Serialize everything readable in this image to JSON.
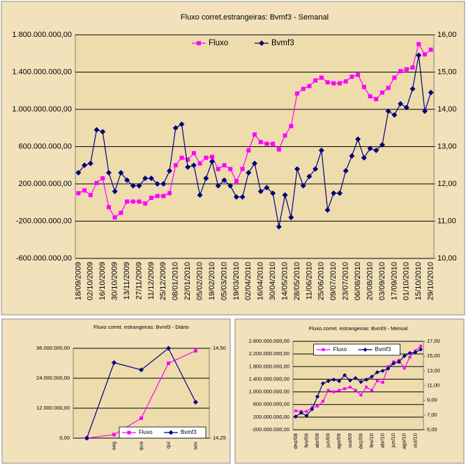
{
  "chart_data": [
    {
      "type": "line",
      "title": "Fluxo corret.estrangeiras: Bvmf3 - Semanal",
      "categories": [
        "18/09/2009",
        null,
        "02/10/2009",
        null,
        "16/10/2009",
        null,
        "30/10/2009",
        null,
        "13/11/2009",
        null,
        "27/11/2009",
        null,
        "11/12/2009",
        null,
        "25/12/2009",
        null,
        "08/01/2010",
        null,
        "22/01/2010",
        null,
        "05/02/2010",
        null,
        "19/02/2010",
        null,
        "05/03/2010",
        null,
        "19/03/2010",
        null,
        "02/04/2010",
        null,
        "16/04/2010",
        null,
        "30/04/2010",
        null,
        "14/05/2010",
        null,
        "28/05/2010",
        null,
        "11/06/2010",
        null,
        "25/06/2010",
        null,
        "09/07/2010",
        null,
        "23/07/2010",
        null,
        "06/08/2010",
        null,
        "20/08/2010",
        null,
        "03/09/2010",
        null,
        "17/09/2010",
        null,
        "01/10/2010",
        null,
        "15/10/2010",
        null,
        "29/10/2010"
      ],
      "series": [
        {
          "name": "Fluxo",
          "color": "#ff00ff",
          "marker": "square",
          "values": [
            100000000,
            130000000,
            80000000,
            210000000,
            260000000,
            -50000000,
            -160000000,
            -110000000,
            10000000,
            10000000,
            10000000,
            -10000000,
            50000000,
            70000000,
            70000000,
            100000000,
            400000000,
            480000000,
            460000000,
            530000000,
            420000000,
            480000000,
            490000000,
            360000000,
            400000000,
            360000000,
            230000000,
            360000000,
            560000000,
            730000000,
            650000000,
            630000000,
            630000000,
            570000000,
            720000000,
            820000000,
            1170000000,
            1220000000,
            1250000000,
            1310000000,
            1340000000,
            1290000000,
            1280000000,
            1280000000,
            1300000000,
            1350000000,
            1370000000,
            1240000000,
            1140000000,
            1110000000,
            1180000000,
            1230000000,
            1340000000,
            1410000000,
            1430000000,
            1450000000,
            1700000000,
            1590000000,
            1640000000
          ]
        },
        {
          "name": "Bvmf3",
          "color": "#000080",
          "marker": "diamond",
          "axis": "y2",
          "values": [
            12.3,
            12.5,
            12.55,
            13.45,
            13.4,
            12.3,
            11.8,
            12.3,
            12.1,
            11.95,
            11.95,
            12.15,
            12.15,
            12.0,
            12.0,
            12.35,
            13.5,
            13.6,
            12.45,
            12.5,
            11.7,
            12.15,
            12.6,
            11.95,
            12.1,
            11.95,
            11.65,
            11.65,
            12.3,
            12.55,
            11.8,
            11.9,
            11.75,
            10.85,
            11.7,
            11.1,
            12.4,
            11.95,
            12.2,
            12.4,
            12.9,
            11.3,
            11.75,
            11.75,
            12.35,
            12.75,
            13.2,
            12.7,
            12.95,
            12.9,
            13.05,
            13.95,
            13.85,
            14.15,
            14.05,
            14.55,
            15.45,
            13.95,
            14.45
          ]
        }
      ],
      "ylim": [
        -600000000,
        1800000000
      ],
      "yticks": [
        {
          "value": -600000000,
          "label": "-600.000.000,00"
        },
        {
          "value": -200000000,
          "label": "-200.000.000,00"
        },
        {
          "value": 200000000,
          "label": "200.000.000,00"
        },
        {
          "value": 600000000,
          "label": "600.000.000,00"
        },
        {
          "value": 1000000000,
          "label": "1.000.000.000,00"
        },
        {
          "value": 1400000000,
          "label": "1.400.000.000,00"
        },
        {
          "value": 1800000000,
          "label": "1.800.000.000,00"
        }
      ],
      "y2lim": [
        10,
        16
      ],
      "y2ticks": [
        {
          "value": 10,
          "label": "10,00"
        },
        {
          "value": 11,
          "label": "11,00"
        },
        {
          "value": 12,
          "label": "12,00"
        },
        {
          "value": 13,
          "label": "13,00"
        },
        {
          "value": 14,
          "label": "14,00"
        },
        {
          "value": 15,
          "label": "15,00"
        },
        {
          "value": 16,
          "label": "16,00"
        }
      ],
      "grid": true,
      "legend": "top"
    },
    {
      "type": "line",
      "title": "Fluxo corret. estrangeiras: Bvmf3 - Diário",
      "categories": [
        null,
        "seg",
        "qua",
        "qui",
        "sex"
      ],
      "series": [
        {
          "name": "Fluxo",
          "color": "#ff00ff",
          "marker": "square",
          "values": [
            0,
            1400000,
            8000000,
            30000000,
            35000000
          ]
        },
        {
          "name": "Bvmf3",
          "color": "#000080",
          "marker": "diamond",
          "axis": "y2",
          "values": [
            14.25,
            14.46,
            14.44,
            14.5,
            14.35
          ]
        }
      ],
      "ylim": [
        0,
        36000000
      ],
      "yticks": [
        {
          "value": 0,
          "label": "0,00"
        },
        {
          "value": 12000000,
          "label": "12.000.000,00"
        },
        {
          "value": 24000000,
          "label": "24.000.000,00"
        },
        {
          "value": 36000000,
          "label": "36.000.000,00"
        }
      ],
      "y2lim": [
        14.25,
        14.5
      ],
      "y2ticks": [
        {
          "value": 14.25,
          "label": "14,25"
        },
        {
          "value": 14.5,
          "label": "14,50"
        }
      ],
      "grid": true,
      "legend": "bottom-right"
    },
    {
      "type": "line",
      "title": "Fluxo corret. estrangeiras: Bvmf3 - Mensal",
      "categories": [
        "dez/08",
        null,
        "fev/09",
        null,
        "abr/09",
        null,
        "jun/09",
        null,
        "ago/09",
        null,
        "out/09",
        null,
        "dez/09",
        null,
        "fev/10",
        null,
        "abr/10",
        null,
        "jun/10",
        null,
        "ago/10",
        null,
        "out/10",
        null
      ],
      "series": [
        {
          "name": "Fluxo",
          "color": "#ff00ff",
          "marker": "square",
          "values": [
            400000000,
            380000000,
            380000000,
            500000000,
            550000000,
            700000000,
            1050000000,
            1000000000,
            1050000000,
            1100000000,
            1150000000,
            1050000000,
            900000000,
            1150000000,
            1050000000,
            1350000000,
            1300000000,
            1800000000,
            1950000000,
            2000000000,
            1750000000,
            2100000000,
            2300000000,
            2450000000
          ]
        },
        {
          "name": "Bvmf3",
          "color": "#000080",
          "marker": "diamond",
          "axis": "y2",
          "values": [
            6.8,
            7.3,
            6.9,
            7.8,
            9.5,
            11.3,
            11.6,
            11.8,
            11.6,
            12.4,
            11.7,
            12.0,
            11.5,
            11.8,
            12.2,
            12.8,
            13.0,
            13.3,
            14.0,
            14.2,
            15.0,
            15.4,
            15.5,
            15.9
          ]
        }
      ],
      "ylim": [
        -200000000,
        2600000000
      ],
      "yticks": [
        {
          "value": -200000000,
          "label": "-200.000.000,00"
        },
        {
          "value": 200000000,
          "label": "200.000.000,00"
        },
        {
          "value": 600000000,
          "label": "600.000.000,00"
        },
        {
          "value": 1000000000,
          "label": "1.000.000.000,00"
        },
        {
          "value": 1400000000,
          "label": "1.400.000.000,00"
        },
        {
          "value": 1800000000,
          "label": "1.800.000.000,00"
        },
        {
          "value": 2200000000,
          "label": "2.200.000.000,00"
        },
        {
          "value": 2600000000,
          "label": "2.600.000.000,00"
        }
      ],
      "y2lim": [
        5,
        17
      ],
      "y2ticks": [
        {
          "value": 5,
          "label": "5,00"
        },
        {
          "value": 7,
          "label": "7,00"
        },
        {
          "value": 9,
          "label": "9,00"
        },
        {
          "value": 11,
          "label": "11,00"
        },
        {
          "value": 13,
          "label": "13,00"
        },
        {
          "value": 15,
          "label": "15,00"
        },
        {
          "value": 17,
          "label": "17,00"
        }
      ],
      "grid": true,
      "legend": "top"
    }
  ]
}
